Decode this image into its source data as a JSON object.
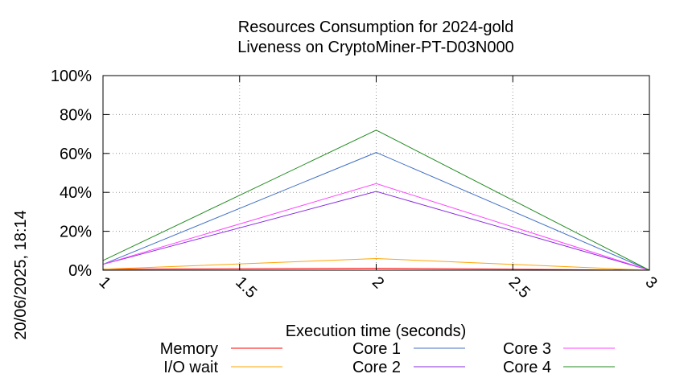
{
  "chart_data": {
    "type": "line",
    "title_line1": "Resources Consumption for 2024-gold",
    "title_line2": "Liveness on CryptoMiner-PT-D03N000",
    "xlabel": "Execution time (seconds)",
    "ylabel": "",
    "timestamp": "20/06/2025, 18:14",
    "x": [
      1,
      2,
      3
    ],
    "xlim": [
      1,
      3
    ],
    "ylim": [
      0,
      100
    ],
    "x_ticks": [
      {
        "value": 1,
        "label": "1"
      },
      {
        "value": 1.5,
        "label": "1.5"
      },
      {
        "value": 2,
        "label": "2"
      },
      {
        "value": 2.5,
        "label": "2.5"
      },
      {
        "value": 3,
        "label": "3"
      }
    ],
    "y_ticks": [
      {
        "value": 0,
        "label": "0%"
      },
      {
        "value": 20,
        "label": "20%"
      },
      {
        "value": 40,
        "label": "40%"
      },
      {
        "value": 60,
        "label": "60%"
      },
      {
        "value": 80,
        "label": "80%"
      },
      {
        "value": 100,
        "label": "100%"
      }
    ],
    "grid": true,
    "legend_position": "bottom",
    "series": [
      {
        "name": "Memory",
        "color": "#ff0000",
        "values": [
          0.5,
          1.0,
          0.0
        ]
      },
      {
        "name": "I/O wait",
        "color": "#ffa500",
        "values": [
          0.5,
          6.0,
          0.0
        ]
      },
      {
        "name": "Core 1",
        "color": "#4472c4",
        "values": [
          3.0,
          60.5,
          0.0
        ]
      },
      {
        "name": "Core 2",
        "color": "#8a2be2",
        "values": [
          3.0,
          40.5,
          0.0
        ]
      },
      {
        "name": "Core 3",
        "color": "#ff44ff",
        "values": [
          3.0,
          44.5,
          0.0
        ]
      },
      {
        "name": "Core 4",
        "color": "#228b22",
        "values": [
          5.0,
          72.0,
          0.0
        ]
      }
    ]
  }
}
